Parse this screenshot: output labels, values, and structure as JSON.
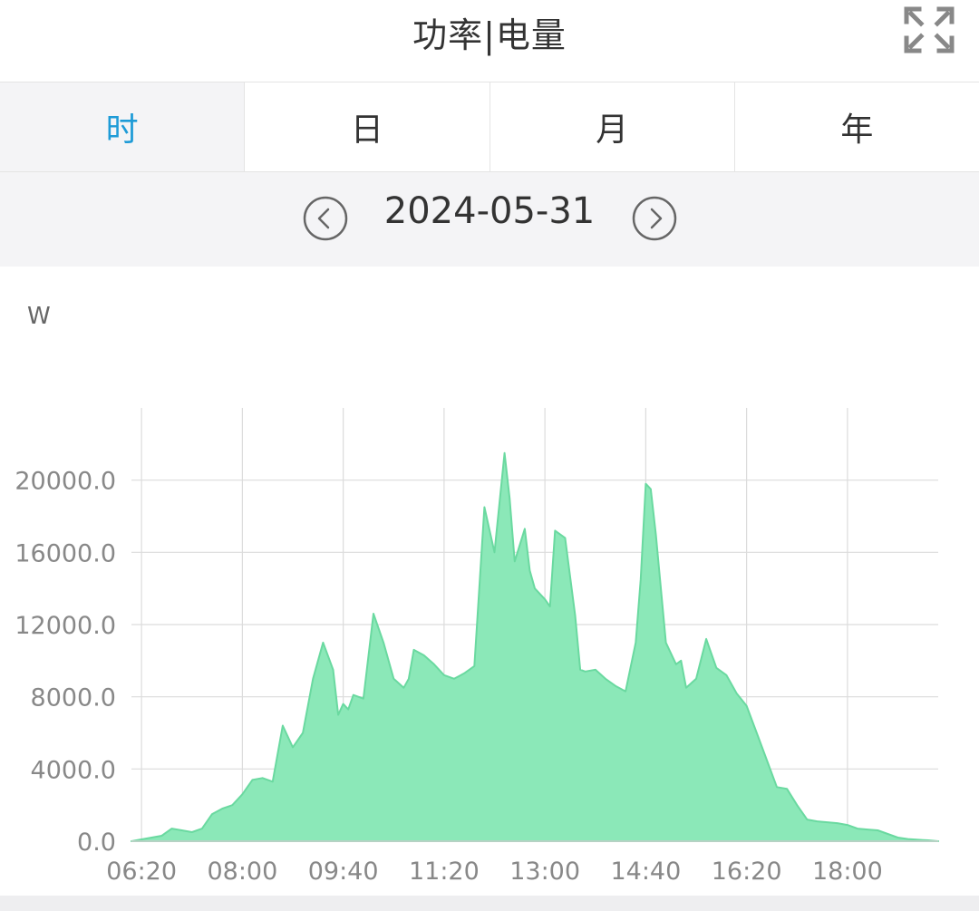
{
  "header": {
    "title": "功率|电量",
    "fullscreen_icon": "fullscreen-icon"
  },
  "tabs": [
    {
      "label": "时",
      "active": true
    },
    {
      "label": "日",
      "active": false
    },
    {
      "label": "月",
      "active": false
    },
    {
      "label": "年",
      "active": false
    }
  ],
  "date_nav": {
    "date": "2024-05-31",
    "prev_icon": "chevron-left-circle-icon",
    "next_icon": "chevron-right-circle-icon"
  },
  "colors": {
    "accent": "#1e9bd7",
    "area_fill": "#8be8b8",
    "area_stroke": "#6ad9a0",
    "grid": "#dcdcdc"
  },
  "chart_data": {
    "type": "area",
    "title": "",
    "ylabel": "W",
    "xlabel": "",
    "ylim": [
      0,
      24000
    ],
    "xlim": [
      "06:10",
      "19:30"
    ],
    "x_ticks": [
      "06:20",
      "08:00",
      "09:40",
      "11:20",
      "13:00",
      "14:40",
      "16:20",
      "18:00"
    ],
    "y_ticks": [
      "0.0",
      "4000.0",
      "8000.0",
      "12000.0",
      "16000.0",
      "20000.0"
    ],
    "grid": true,
    "x": [
      "06:10",
      "06:20",
      "06:30",
      "06:40",
      "06:50",
      "07:00",
      "07:10",
      "07:20",
      "07:30",
      "07:40",
      "07:50",
      "08:00",
      "08:10",
      "08:20",
      "08:30",
      "08:40",
      "08:50",
      "09:00",
      "09:10",
      "09:20",
      "09:30",
      "09:35",
      "09:40",
      "09:45",
      "09:50",
      "10:00",
      "10:10",
      "10:20",
      "10:30",
      "10:40",
      "10:45",
      "10:50",
      "11:00",
      "11:10",
      "11:20",
      "11:30",
      "11:40",
      "11:50",
      "12:00",
      "12:10",
      "12:20",
      "12:25",
      "12:30",
      "12:40",
      "12:45",
      "12:50",
      "13:00",
      "13:05",
      "13:10",
      "13:20",
      "13:30",
      "13:35",
      "13:40",
      "13:50",
      "14:00",
      "14:10",
      "14:20",
      "14:30",
      "14:35",
      "14:40",
      "14:45",
      "14:50",
      "15:00",
      "15:10",
      "15:15",
      "15:20",
      "15:30",
      "15:40",
      "15:50",
      "16:00",
      "16:10",
      "16:20",
      "16:30",
      "16:40",
      "16:50",
      "17:00",
      "17:10",
      "17:20",
      "17:30",
      "17:40",
      "17:50",
      "18:00",
      "18:10",
      "18:20",
      "18:30",
      "18:40",
      "18:50",
      "19:00",
      "19:10",
      "19:20",
      "19:30"
    ],
    "series": [
      {
        "values": [
          0,
          100,
          200,
          300,
          700,
          600,
          500,
          700,
          1500,
          1800,
          2000,
          2600,
          3400,
          3500,
          3300,
          6400,
          5200,
          6000,
          9000,
          11000,
          9500,
          7000,
          7600,
          7300,
          8100,
          7900,
          12600,
          11000,
          9000,
          8500,
          9000,
          10600,
          10300,
          9800,
          9200,
          9000,
          9300,
          9700,
          18500,
          16000,
          21500,
          19000,
          15500,
          17300,
          15000,
          14000,
          13400,
          13000,
          17200,
          16800,
          12500,
          9500,
          9400,
          9500,
          9000,
          8600,
          8300,
          11000,
          14500,
          19800,
          19500,
          17000,
          11000,
          9800,
          10000,
          8500,
          9000,
          11200,
          9600,
          9200,
          8200,
          7500,
          6000,
          4500,
          3000,
          2900,
          2000,
          1200,
          1100,
          1050,
          1000,
          900,
          700,
          650,
          600,
          400,
          200,
          120,
          80,
          50,
          0
        ]
      }
    ]
  }
}
